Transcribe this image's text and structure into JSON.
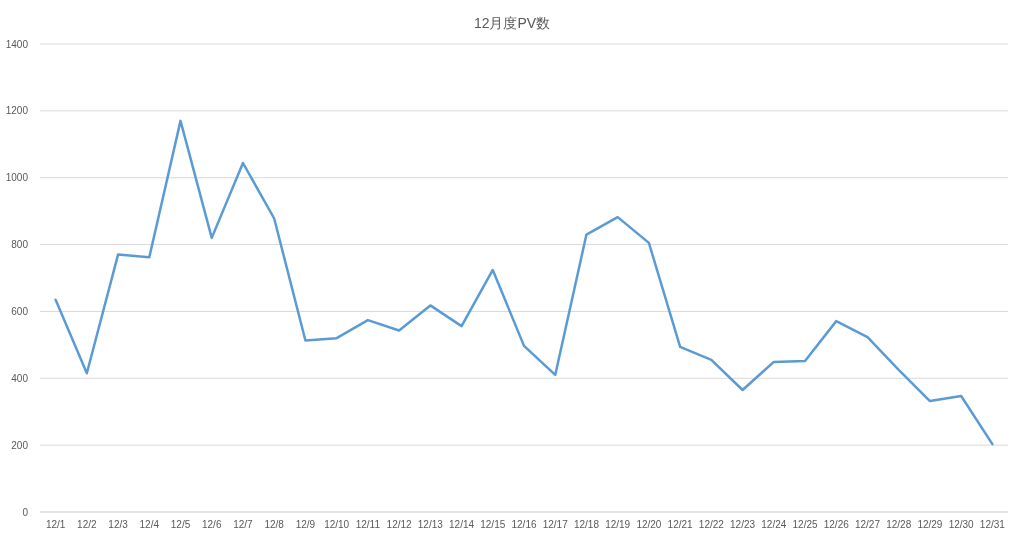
{
  "chart_data": {
    "type": "line",
    "title": "12月度PV数",
    "categories": [
      "12/1",
      "12/2",
      "12/3",
      "12/4",
      "12/5",
      "12/6",
      "12/7",
      "12/8",
      "12/9",
      "12/10",
      "12/11",
      "12/12",
      "12/13",
      "12/14",
      "12/15",
      "12/16",
      "12/17",
      "12/18",
      "12/19",
      "12/20",
      "12/21",
      "12/22",
      "12/23",
      "12/24",
      "12/25",
      "12/26",
      "12/27",
      "12/28",
      "12/29",
      "12/30",
      "12/31"
    ],
    "series": [
      {
        "color": "#5b9bd5",
        "values": [
          635,
          415,
          770,
          762,
          1170,
          820,
          1044,
          878,
          513,
          520,
          574,
          543,
          618,
          556,
          724,
          497,
          410,
          830,
          882,
          805,
          494,
          455,
          365,
          449,
          452,
          571,
          523,
          425,
          332,
          347,
          203
        ]
      }
    ],
    "ylim": [
      0,
      1400
    ],
    "yticks": [
      0,
      200,
      400,
      600,
      800,
      1000,
      1200,
      1400
    ],
    "grid": "y"
  }
}
